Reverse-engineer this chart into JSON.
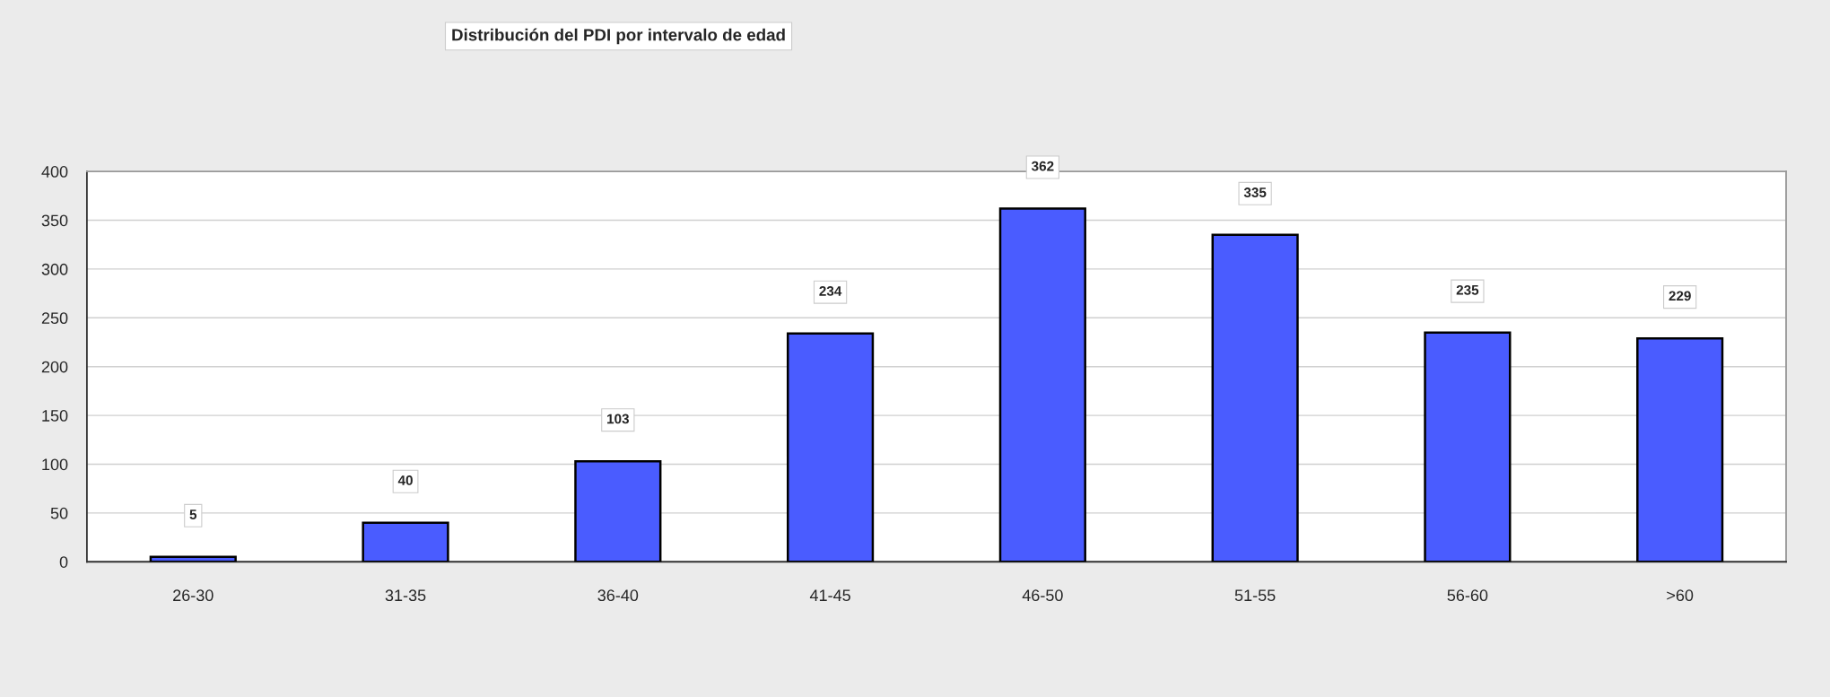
{
  "chart_data": {
    "type": "bar",
    "title": "Distribución del PDI por intervalo de edad",
    "categories": [
      "26-30",
      "31-35",
      "36-40",
      "41-45",
      "46-50",
      "51-55",
      "56-60",
      ">60"
    ],
    "values": [
      5,
      40,
      103,
      234,
      362,
      335,
      235,
      229
    ],
    "color": "#4a5cff",
    "ylim": [
      0,
      400
    ],
    "yticks": [
      0,
      50,
      100,
      150,
      200,
      250,
      300,
      350,
      400
    ],
    "grid": "y",
    "data_labels": true
  }
}
